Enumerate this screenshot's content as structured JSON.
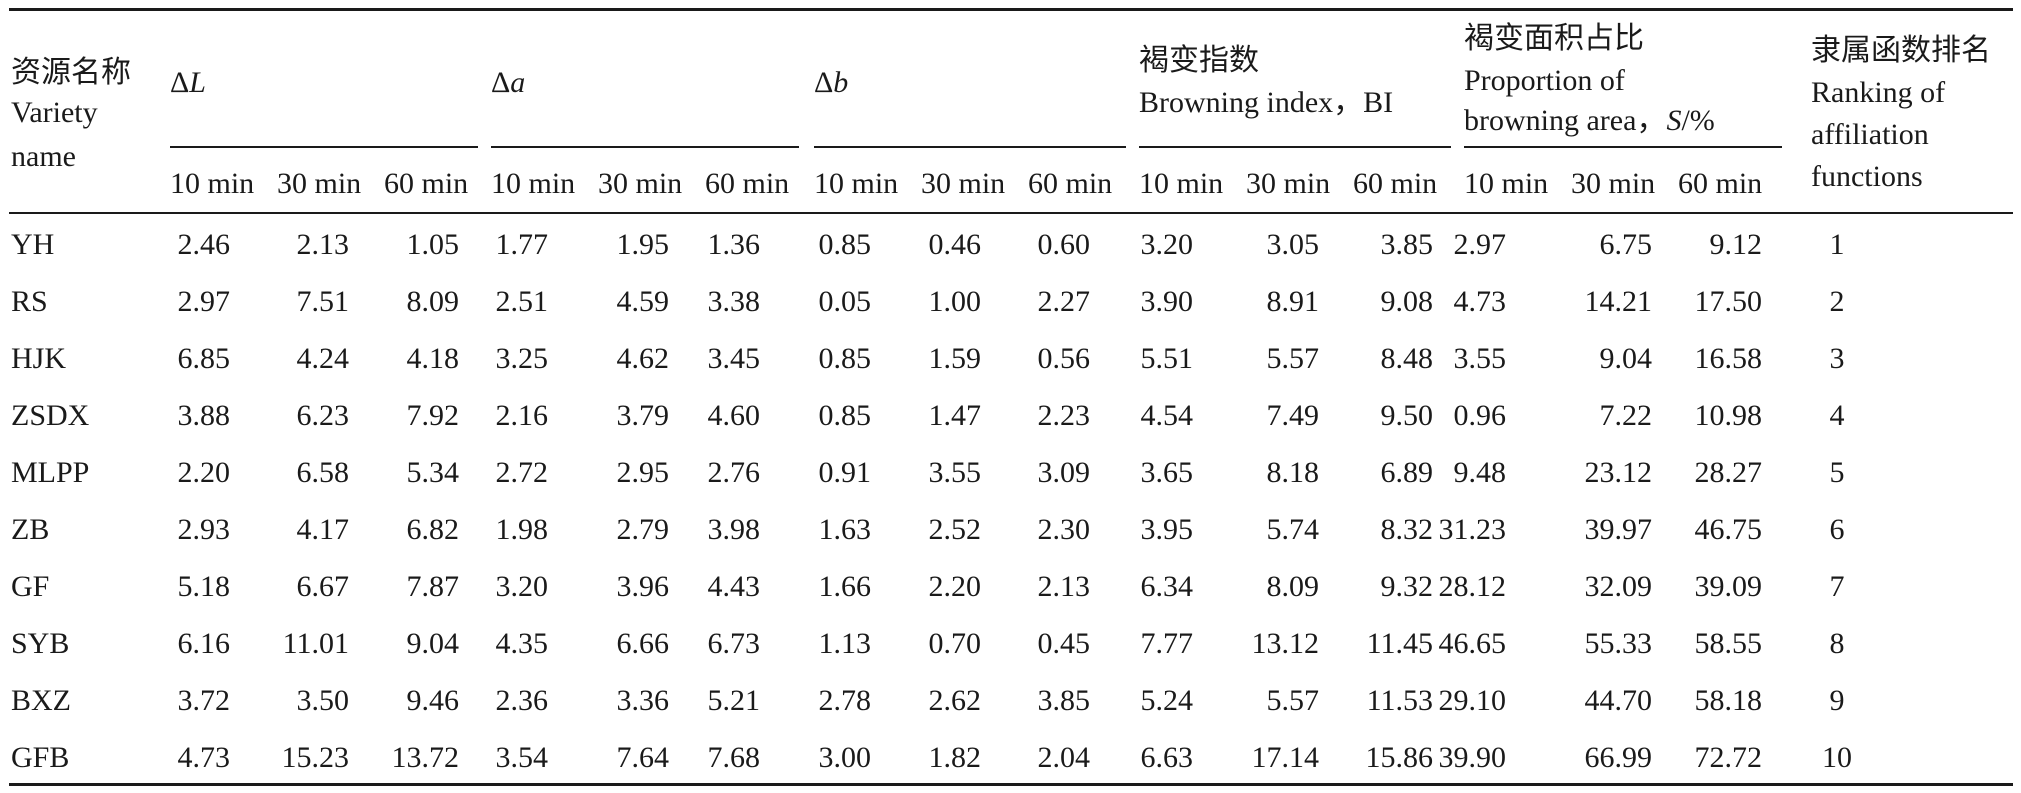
{
  "table": {
    "headers": {
      "name_zh": "资源名称",
      "name_en_1": "Variety",
      "name_en_2": "name",
      "dL_delta": "Δ",
      "dL_var": "L",
      "da_delta": "Δ",
      "da_var": "a",
      "db_delta": "Δ",
      "db_var": "b",
      "bi_zh": "褐变指数",
      "bi_en": "Browning index，BI",
      "area_zh": "褐变面积占比",
      "area_en_1": "Proportion of",
      "area_en_2_pre": "browning area，",
      "area_en_2_var": "S",
      "area_en_2_post": "/%",
      "rank_zh": "隶属函数排名",
      "rank_en_1": "Ranking of",
      "rank_en_2": "affiliation",
      "rank_en_3": "functions"
    },
    "subheaders": [
      "10 min",
      "30 min",
      "60 min"
    ],
    "rows": [
      {
        "name": "YH",
        "vals": [
          "2.46",
          "2.13",
          "1.05",
          "1.77",
          "1.95",
          "1.36",
          "0.85",
          "0.46",
          "0.60",
          "3.20",
          "3.05",
          "3.85",
          "2.97",
          "6.75",
          "9.12"
        ],
        "rank": "1"
      },
      {
        "name": "RS",
        "vals": [
          "2.97",
          "7.51",
          "8.09",
          "2.51",
          "4.59",
          "3.38",
          "0.05",
          "1.00",
          "2.27",
          "3.90",
          "8.91",
          "9.08",
          "4.73",
          "14.21",
          "17.50"
        ],
        "rank": "2"
      },
      {
        "name": "HJK",
        "vals": [
          "6.85",
          "4.24",
          "4.18",
          "3.25",
          "4.62",
          "3.45",
          "0.85",
          "1.59",
          "0.56",
          "5.51",
          "5.57",
          "8.48",
          "3.55",
          "9.04",
          "16.58"
        ],
        "rank": "3"
      },
      {
        "name": "ZSDX",
        "vals": [
          "3.88",
          "6.23",
          "7.92",
          "2.16",
          "3.79",
          "4.60",
          "0.85",
          "1.47",
          "2.23",
          "4.54",
          "7.49",
          "9.50",
          "0.96",
          "7.22",
          "10.98"
        ],
        "rank": "4"
      },
      {
        "name": "MLPP",
        "vals": [
          "2.20",
          "6.58",
          "5.34",
          "2.72",
          "2.95",
          "2.76",
          "0.91",
          "3.55",
          "3.09",
          "3.65",
          "8.18",
          "6.89",
          "9.48",
          "23.12",
          "28.27"
        ],
        "rank": "5"
      },
      {
        "name": "ZB",
        "vals": [
          "2.93",
          "4.17",
          "6.82",
          "1.98",
          "2.79",
          "3.98",
          "1.63",
          "2.52",
          "2.30",
          "3.95",
          "5.74",
          "8.32",
          "31.23",
          "39.97",
          "46.75"
        ],
        "rank": "6"
      },
      {
        "name": "GF",
        "vals": [
          "5.18",
          "6.67",
          "7.87",
          "3.20",
          "3.96",
          "4.43",
          "1.66",
          "2.20",
          "2.13",
          "6.34",
          "8.09",
          "9.32",
          "28.12",
          "32.09",
          "39.09"
        ],
        "rank": "7"
      },
      {
        "name": "SYB",
        "vals": [
          "6.16",
          "11.01",
          "9.04",
          "4.35",
          "6.66",
          "6.73",
          "1.13",
          "0.70",
          "0.45",
          "7.77",
          "13.12",
          "11.45",
          "46.65",
          "55.33",
          "58.55"
        ],
        "rank": "8"
      },
      {
        "name": "BXZ",
        "vals": [
          "3.72",
          "3.50",
          "9.46",
          "2.36",
          "3.36",
          "5.21",
          "2.78",
          "2.62",
          "3.85",
          "5.24",
          "5.57",
          "11.53",
          "29.10",
          "44.70",
          "58.18"
        ],
        "rank": "9"
      },
      {
        "name": "GFB",
        "vals": [
          "4.73",
          "15.23",
          "13.72",
          "3.54",
          "7.64",
          "7.68",
          "3.00",
          "1.82",
          "2.04",
          "6.63",
          "17.14",
          "15.86",
          "39.90",
          "66.99",
          "72.72"
        ],
        "rank": "10"
      }
    ]
  }
}
